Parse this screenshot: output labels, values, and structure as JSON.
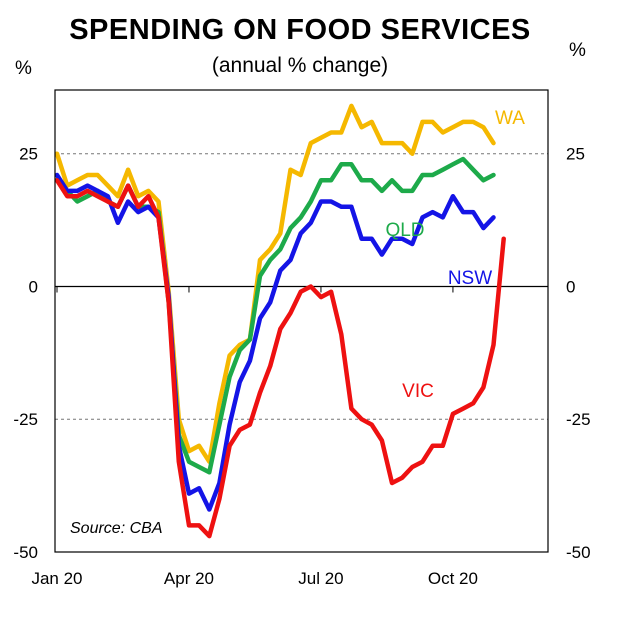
{
  "chart_data": {
    "type": "line",
    "title": "SPENDING ON FOOD SERVICES",
    "subtitle": "(annual % change)",
    "ylabel_left": "%",
    "ylabel_right": "%",
    "ylim": [
      -50,
      37
    ],
    "yticks": [
      25,
      0,
      -25,
      -50
    ],
    "ytick_labels": [
      "25",
      "0",
      "-25",
      "-50"
    ],
    "x_range": [
      0,
      46
    ],
    "xticks": [
      {
        "label": "Jan 20",
        "x": 0
      },
      {
        "label": "Apr 20",
        "x": 13
      },
      {
        "label": "Jul 20",
        "x": 26
      },
      {
        "label": "Oct 20",
        "x": 39
      }
    ],
    "grid": "dashed at 25 and -25",
    "source": "Source: CBA",
    "series": [
      {
        "name": "WA",
        "color": "#F5B800",
        "values": [
          25,
          19,
          20,
          21,
          21,
          19,
          17,
          22,
          17,
          18,
          16,
          -1,
          -25,
          -31,
          -30,
          -33,
          -22,
          -13,
          -11,
          -10,
          5,
          7,
          10,
          22,
          21,
          27,
          28,
          29,
          29,
          34,
          30,
          31,
          27,
          27,
          27,
          25,
          31,
          31,
          29,
          30,
          31,
          31,
          30,
          27
        ]
      },
      {
        "name": "QLD",
        "color": "#1DAA4A",
        "values": [
          20,
          18,
          16,
          17,
          18,
          16,
          15,
          19,
          15,
          15,
          14,
          -3,
          -28,
          -33,
          -34,
          -35,
          -26,
          -17,
          -12,
          -10,
          2,
          5,
          7,
          11,
          13,
          16,
          20,
          20,
          23,
          23,
          20,
          20,
          18,
          20,
          18,
          18,
          21,
          21,
          22,
          23,
          24,
          22,
          20,
          21
        ]
      },
      {
        "name": "NSW",
        "color": "#1414E6",
        "values": [
          21,
          18,
          18,
          19,
          18,
          17,
          12,
          16,
          14,
          15,
          13,
          -2,
          -30,
          -39,
          -38,
          -42,
          -37,
          -26,
          -18,
          -14,
          -6,
          -3,
          3,
          5,
          10,
          12,
          16,
          16,
          15,
          15,
          9,
          9,
          6,
          9,
          9,
          8,
          13,
          14,
          13,
          17,
          14,
          14,
          11,
          13
        ]
      },
      {
        "name": "VIC",
        "color": "#EE1111",
        "values": [
          20,
          17,
          17,
          18,
          17,
          16,
          15,
          19,
          15,
          17,
          13,
          -3,
          -33,
          -45,
          -45,
          -47,
          -40,
          -30,
          -27,
          -26,
          -20,
          -15,
          -8,
          -5,
          -1,
          0,
          -2,
          -1,
          -9,
          -23,
          -25,
          -26,
          -29,
          -37,
          -36,
          -34,
          -33,
          -30,
          -30,
          -24,
          -23,
          -22,
          -19,
          -11,
          9
        ]
      }
    ],
    "annotations": [
      "WA",
      "QLD",
      "NSW",
      "VIC"
    ]
  }
}
